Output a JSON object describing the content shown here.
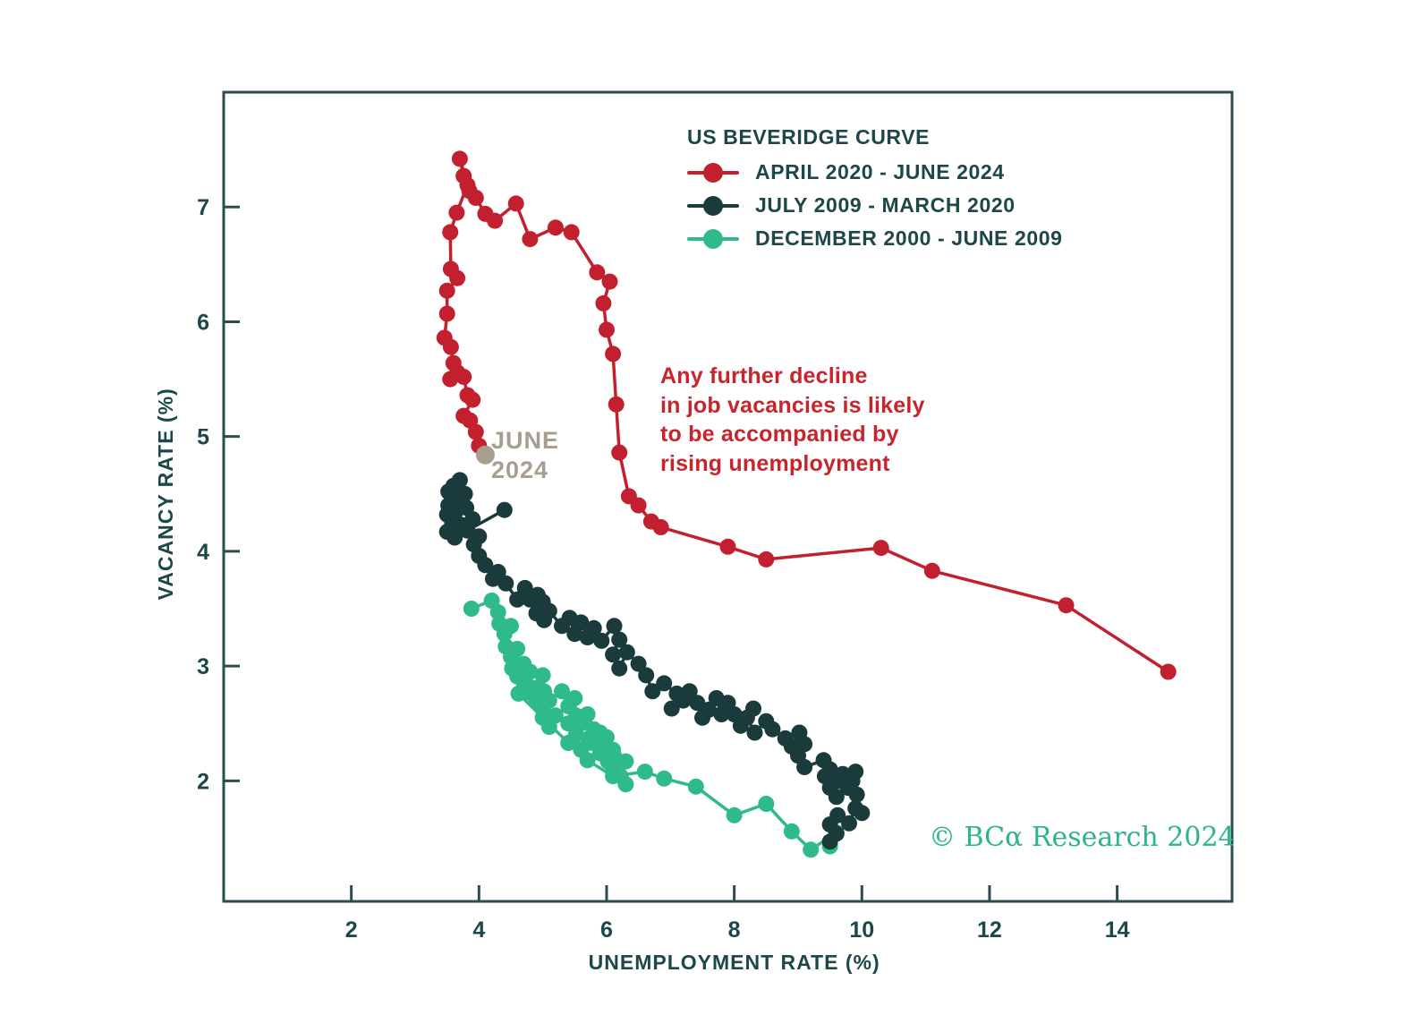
{
  "page": {
    "background": "#ffffff"
  },
  "legend": {
    "title": "US BEVERIDGE CURVE"
  },
  "annotation": {
    "lines": [
      "Any further decline",
      "in job vacancies is likely",
      "to be accompanied by",
      "rising unemployment"
    ],
    "color": "#c8242c"
  },
  "highlight_label": {
    "line1": "JUNE",
    "line2": "2024",
    "color": "#a89e8f"
  },
  "copyright": {
    "text": "© BCα Research 2024",
    "color": "#2db48d"
  },
  "colors": {
    "axis_text": "#1d4749",
    "plot_border": "#2b4d4f",
    "red_series": "#c3202f",
    "dark_series": "#1b3a3c",
    "green_series": "#2eba8d",
    "highlight_gray": "#a89e8f"
  },
  "chart_data": {
    "type": "scatter",
    "title": "US BEVERIDGE CURVE",
    "xlabel": "UNEMPLOYMENT RATE (%)",
    "ylabel": "VACANCY RATE (%)",
    "xlim": [
      0,
      15.8
    ],
    "ylim": [
      0.95,
      8.0
    ],
    "xticks": [
      2,
      4,
      6,
      8,
      10,
      12,
      14
    ],
    "yticks": [
      2,
      3,
      4,
      5,
      6,
      7
    ],
    "grid": false,
    "legend_position": "top-right-inside",
    "series": [
      {
        "name": "APRIL 2020 - JUNE 2024",
        "color": "#c3202f",
        "points": [
          [
            14.8,
            2.95
          ],
          [
            13.2,
            3.53
          ],
          [
            11.1,
            3.83
          ],
          [
            10.3,
            4.03
          ],
          [
            8.5,
            3.93
          ],
          [
            7.9,
            4.04
          ],
          [
            6.85,
            4.21
          ],
          [
            6.7,
            4.26
          ],
          [
            6.5,
            4.4
          ],
          [
            6.35,
            4.48
          ],
          [
            6.2,
            4.86
          ],
          [
            6.15,
            5.28
          ],
          [
            6.1,
            5.72
          ],
          [
            6.0,
            5.93
          ],
          [
            5.95,
            6.16
          ],
          [
            6.05,
            6.35
          ],
          [
            5.85,
            6.43
          ],
          [
            5.45,
            6.78
          ],
          [
            5.2,
            6.82
          ],
          [
            4.8,
            6.72
          ],
          [
            4.58,
            7.03
          ],
          [
            4.25,
            6.88
          ],
          [
            4.1,
            6.94
          ],
          [
            3.95,
            7.08
          ],
          [
            3.85,
            7.14
          ],
          [
            3.7,
            7.42
          ],
          [
            3.76,
            7.27
          ],
          [
            3.82,
            7.19
          ],
          [
            3.65,
            6.95
          ],
          [
            3.55,
            6.78
          ],
          [
            3.56,
            6.46
          ],
          [
            3.66,
            6.38
          ],
          [
            3.5,
            6.27
          ],
          [
            3.5,
            6.07
          ],
          [
            3.46,
            5.86
          ],
          [
            3.56,
            5.78
          ],
          [
            3.6,
            5.64
          ],
          [
            3.66,
            5.56
          ],
          [
            3.55,
            5.5
          ],
          [
            3.76,
            5.52
          ],
          [
            3.82,
            5.36
          ],
          [
            3.9,
            5.32
          ],
          [
            3.76,
            5.18
          ],
          [
            3.86,
            5.14
          ],
          [
            3.95,
            5.04
          ],
          [
            4.0,
            4.92
          ]
        ]
      },
      {
        "name": "JULY 2009 - MARCH 2020",
        "color": "#1b3a3c",
        "points": [
          [
            9.5,
            1.62
          ],
          [
            9.6,
            1.54
          ],
          [
            9.5,
            1.47
          ],
          [
            9.62,
            1.7
          ],
          [
            9.8,
            1.63
          ],
          [
            9.9,
            1.76
          ],
          [
            10.0,
            1.72
          ],
          [
            9.92,
            1.88
          ],
          [
            9.85,
            2.0
          ],
          [
            9.78,
            1.94
          ],
          [
            9.7,
            2.06
          ],
          [
            9.9,
            2.08
          ],
          [
            9.62,
            2.0
          ],
          [
            9.5,
            2.1
          ],
          [
            9.42,
            2.04
          ],
          [
            9.5,
            1.94
          ],
          [
            9.6,
            1.86
          ],
          [
            9.4,
            2.18
          ],
          [
            9.1,
            2.12
          ],
          [
            9.0,
            2.22
          ],
          [
            9.1,
            2.32
          ],
          [
            9.02,
            2.42
          ],
          [
            8.9,
            2.3
          ],
          [
            8.8,
            2.37
          ],
          [
            8.6,
            2.45
          ],
          [
            8.5,
            2.52
          ],
          [
            8.32,
            2.42
          ],
          [
            8.2,
            2.55
          ],
          [
            8.3,
            2.63
          ],
          [
            8.1,
            2.48
          ],
          [
            8.0,
            2.58
          ],
          [
            7.9,
            2.68
          ],
          [
            7.8,
            2.58
          ],
          [
            7.72,
            2.72
          ],
          [
            7.6,
            2.62
          ],
          [
            7.5,
            2.55
          ],
          [
            7.42,
            2.68
          ],
          [
            7.3,
            2.78
          ],
          [
            7.2,
            2.7
          ],
          [
            7.02,
            2.63
          ],
          [
            7.1,
            2.76
          ],
          [
            6.9,
            2.85
          ],
          [
            6.72,
            2.78
          ],
          [
            6.62,
            2.92
          ],
          [
            6.5,
            3.02
          ],
          [
            6.32,
            3.12
          ],
          [
            6.2,
            2.98
          ],
          [
            6.1,
            3.1
          ],
          [
            6.2,
            3.23
          ],
          [
            6.12,
            3.35
          ],
          [
            5.92,
            3.22
          ],
          [
            5.8,
            3.33
          ],
          [
            5.7,
            3.25
          ],
          [
            5.6,
            3.38
          ],
          [
            5.5,
            3.28
          ],
          [
            5.42,
            3.42
          ],
          [
            5.3,
            3.35
          ],
          [
            5.1,
            3.48
          ],
          [
            5.02,
            3.4
          ],
          [
            5.0,
            3.56
          ],
          [
            4.92,
            3.62
          ],
          [
            4.9,
            3.46
          ],
          [
            4.8,
            3.58
          ],
          [
            4.72,
            3.68
          ],
          [
            4.6,
            3.58
          ],
          [
            4.42,
            3.72
          ],
          [
            4.3,
            3.82
          ],
          [
            4.22,
            3.76
          ],
          [
            4.1,
            3.88
          ],
          [
            4.0,
            3.96
          ],
          [
            3.92,
            4.06
          ],
          [
            4.0,
            4.13
          ],
          [
            3.82,
            4.18
          ],
          [
            3.9,
            4.28
          ],
          [
            3.72,
            4.23
          ],
          [
            3.62,
            4.33
          ],
          [
            3.7,
            4.43
          ],
          [
            3.8,
            4.38
          ],
          [
            3.62,
            4.48
          ],
          [
            3.52,
            4.4
          ],
          [
            3.6,
            4.57
          ],
          [
            3.7,
            4.62
          ],
          [
            3.52,
            4.52
          ],
          [
            3.58,
            4.25
          ],
          [
            3.5,
            4.32
          ],
          [
            3.56,
            4.42
          ],
          [
            3.78,
            4.5
          ],
          [
            3.5,
            4.17
          ],
          [
            3.62,
            4.12
          ],
          [
            4.4,
            4.36
          ]
        ]
      },
      {
        "name": "DECEMBER 2000 - JUNE 2009",
        "color": "#2eba8d",
        "points": [
          [
            3.88,
            3.5
          ],
          [
            4.2,
            3.57
          ],
          [
            4.3,
            3.47
          ],
          [
            4.32,
            3.37
          ],
          [
            4.4,
            3.28
          ],
          [
            4.5,
            3.35
          ],
          [
            4.42,
            3.17
          ],
          [
            4.5,
            3.08
          ],
          [
            4.6,
            3.15
          ],
          [
            4.52,
            2.98
          ],
          [
            4.6,
            2.91
          ],
          [
            4.7,
            3.02
          ],
          [
            4.8,
            2.95
          ],
          [
            4.72,
            2.87
          ],
          [
            4.9,
            2.81
          ],
          [
            5.0,
            2.92
          ],
          [
            5.02,
            2.78
          ],
          [
            5.1,
            2.7
          ],
          [
            5.3,
            2.78
          ],
          [
            5.4,
            2.65
          ],
          [
            5.5,
            2.72
          ],
          [
            5.52,
            2.57
          ],
          [
            5.6,
            2.5
          ],
          [
            5.7,
            2.58
          ],
          [
            5.8,
            2.45
          ],
          [
            5.72,
            2.37
          ],
          [
            5.9,
            2.42
          ],
          [
            5.92,
            2.3
          ],
          [
            6.0,
            2.38
          ],
          [
            6.1,
            2.27
          ],
          [
            6.02,
            2.17
          ],
          [
            6.1,
            2.08
          ],
          [
            6.3,
            2.17
          ],
          [
            6.22,
            2.04
          ],
          [
            6.3,
            1.97
          ],
          [
            6.12,
            2.21
          ],
          [
            5.9,
            2.24
          ],
          [
            5.78,
            2.33
          ],
          [
            5.6,
            2.27
          ],
          [
            5.52,
            2.4
          ],
          [
            5.4,
            2.5
          ],
          [
            5.2,
            2.57
          ],
          [
            5.1,
            2.47
          ],
          [
            5.0,
            2.63
          ],
          [
            4.9,
            2.7
          ],
          [
            4.8,
            2.77
          ],
          [
            4.7,
            2.86
          ],
          [
            4.62,
            2.76
          ],
          [
            5.0,
            2.55
          ],
          [
            5.4,
            2.33
          ],
          [
            5.7,
            2.18
          ],
          [
            6.1,
            2.04
          ],
          [
            6.6,
            2.08
          ],
          [
            6.9,
            2.02
          ],
          [
            7.4,
            1.95
          ],
          [
            8.0,
            1.7
          ],
          [
            8.5,
            1.8
          ],
          [
            8.9,
            1.56
          ],
          [
            9.2,
            1.4
          ],
          [
            9.6,
            1.55
          ],
          [
            9.5,
            1.43
          ]
        ]
      }
    ],
    "highlight_point": {
      "label": "JUNE 2024",
      "x": 4.1,
      "y": 4.84,
      "color": "#a89e8f"
    }
  }
}
